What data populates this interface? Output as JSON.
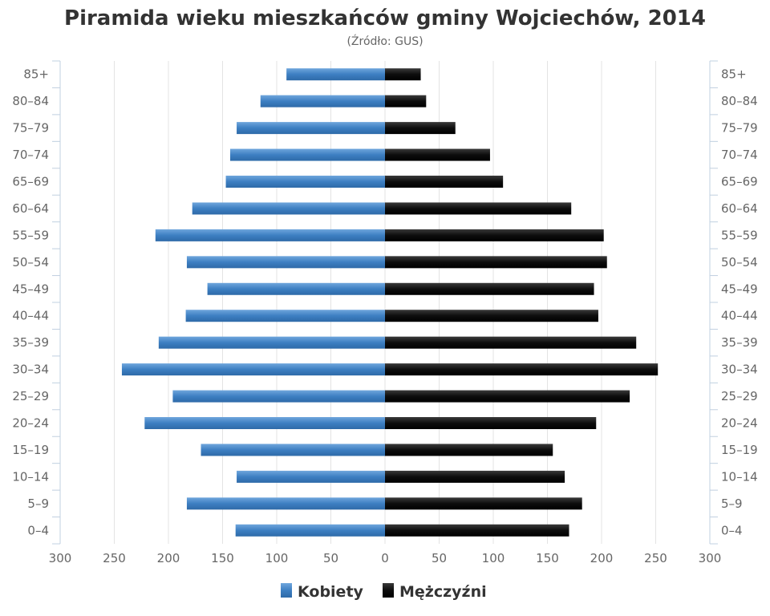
{
  "chart_data": {
    "type": "bar",
    "orientation": "horizontal-population-pyramid",
    "title": "Piramida wieku mieszkańców gminy Wojciechów, 2014",
    "subtitle": "(Źródło: GUS)",
    "categories": [
      "0–4",
      "5–9",
      "10–14",
      "15–19",
      "20–24",
      "25–29",
      "30–34",
      "35–39",
      "40–44",
      "45–49",
      "50–54",
      "55–59",
      "60–64",
      "65–69",
      "70–74",
      "75–79",
      "80–84",
      "85+"
    ],
    "series": [
      {
        "name": "Kobiety",
        "values": [
          138,
          183,
          137,
          170,
          222,
          196,
          243,
          209,
          184,
          164,
          183,
          212,
          178,
          147,
          143,
          137,
          115,
          91
        ],
        "color": "#4a87c7"
      },
      {
        "name": "Mężczyźni",
        "values": [
          170,
          182,
          166,
          155,
          195,
          226,
          252,
          232,
          197,
          193,
          205,
          202,
          172,
          109,
          97,
          65,
          38,
          33
        ],
        "color": "#1a1a1a"
      }
    ],
    "xlim": [
      -300,
      300
    ],
    "xticks": [
      "300",
      "250",
      "200",
      "150",
      "100",
      "50",
      "0",
      "50",
      "100",
      "150",
      "200",
      "250",
      "300"
    ],
    "grid": true,
    "legend_position": "bottom"
  }
}
